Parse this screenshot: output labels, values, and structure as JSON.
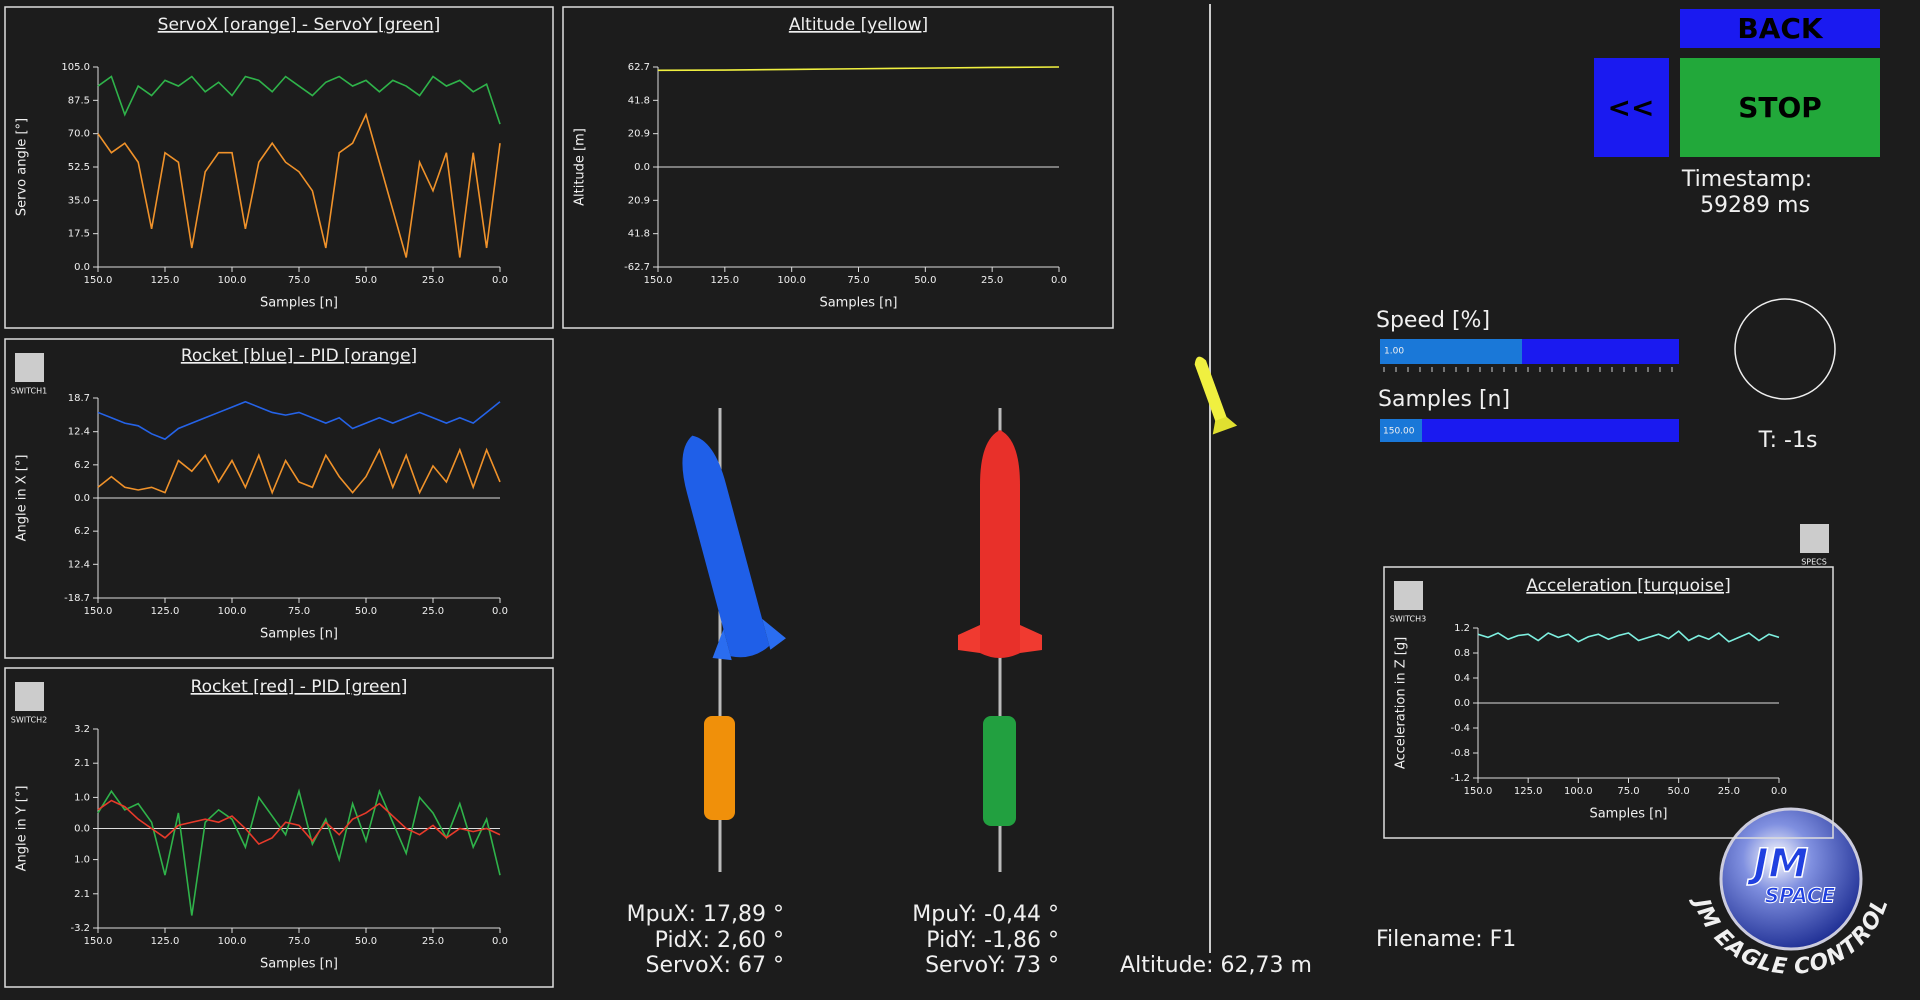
{
  "chart_data": [
    {
      "type": "line",
      "title": "ServoX [orange] - ServoY [green]",
      "xlabel": "Samples [n]",
      "ylabel": "Servo angle [°]",
      "x": [
        150,
        145,
        140,
        135,
        130,
        125,
        120,
        115,
        110,
        105,
        100,
        95,
        90,
        85,
        80,
        75,
        70,
        65,
        60,
        55,
        50,
        45,
        40,
        35,
        30,
        25,
        20,
        15,
        10,
        5,
        0
      ],
      "series": [
        {
          "name": "ServoX",
          "color": "#f0922a",
          "values": [
            70,
            60,
            65,
            55,
            20,
            60,
            55,
            10,
            50,
            60,
            60,
            20,
            55,
            65,
            55,
            50,
            40,
            10,
            60,
            65,
            80,
            55,
            30,
            5,
            55,
            40,
            60,
            5,
            60,
            10,
            65
          ]
        },
        {
          "name": "ServoY",
          "color": "#2fb34a",
          "values": [
            95,
            100,
            80,
            95,
            90,
            98,
            95,
            100,
            92,
            97,
            90,
            100,
            98,
            92,
            100,
            95,
            90,
            97,
            100,
            95,
            98,
            92,
            98,
            95,
            90,
            100,
            95,
            98,
            92,
            96,
            75
          ]
        }
      ],
      "xlim": [
        150,
        0
      ],
      "ylim": [
        0,
        105
      ],
      "xticks": [
        {
          "value": 150,
          "label": "150.0"
        },
        {
          "value": 125,
          "label": "125.0"
        },
        {
          "value": 100,
          "label": "100.0"
        },
        {
          "value": 75,
          "label": "75.0"
        },
        {
          "value": 50,
          "label": "50.0"
        },
        {
          "value": 25,
          "label": "25.0"
        },
        {
          "value": 0,
          "label": "0.0"
        }
      ],
      "yticks": [
        {
          "value": 0,
          "label": "0.0"
        },
        {
          "value": 17.5,
          "label": "17.5"
        },
        {
          "value": 35,
          "label": "35.0"
        },
        {
          "value": 52.5,
          "label": "52.5"
        },
        {
          "value": 70,
          "label": "70.0"
        },
        {
          "value": 87.5,
          "label": "87.5"
        },
        {
          "value": 105,
          "label": "105.0"
        }
      ]
    },
    {
      "type": "line",
      "title": "Rocket [blue] - PID [orange]",
      "xlabel": "Samples [n]",
      "ylabel": "Angle in X [°]",
      "switch": "SWITCH1",
      "x": [
        150,
        145,
        140,
        135,
        130,
        125,
        120,
        115,
        110,
        105,
        100,
        95,
        90,
        85,
        80,
        75,
        70,
        65,
        60,
        55,
        50,
        45,
        40,
        35,
        30,
        25,
        20,
        15,
        10,
        5,
        0
      ],
      "series": [
        {
          "name": "Rocket",
          "color": "#2563e8",
          "values": [
            16,
            15,
            14,
            13.5,
            12,
            11,
            13,
            14,
            15,
            16,
            17,
            18,
            17,
            16,
            15.5,
            16,
            15,
            14,
            15,
            13,
            14,
            15,
            14,
            15,
            16,
            15,
            14,
            15,
            14,
            16,
            18
          ]
        },
        {
          "name": "PID",
          "color": "#f0922a",
          "values": [
            2,
            4,
            2,
            1.5,
            2,
            1,
            7,
            5,
            8,
            3,
            7,
            2,
            8,
            1,
            7,
            3,
            2,
            8,
            4,
            1,
            4,
            9,
            2,
            8,
            1,
            6,
            3,
            9,
            2,
            9,
            3
          ]
        }
      ],
      "xlim": [
        150,
        0
      ],
      "ylim": [
        -18.7,
        18.7
      ],
      "xticks": [
        {
          "value": 150,
          "label": "150.0"
        },
        {
          "value": 125,
          "label": "125.0"
        },
        {
          "value": 100,
          "label": "100.0"
        },
        {
          "value": 75,
          "label": "75.0"
        },
        {
          "value": 50,
          "label": "50.0"
        },
        {
          "value": 25,
          "label": "25.0"
        },
        {
          "value": 0,
          "label": "0.0"
        }
      ],
      "yticks": [
        -18.7,
        {
          "value": -12.4,
          "label": "12.4"
        },
        {
          "value": -6.2,
          "label": "6.2"
        },
        {
          "value": 0,
          "label": "0.0"
        },
        6.2,
        12.4,
        18.7
      ]
    },
    {
      "type": "line",
      "title": "Rocket [red] - PID [green]",
      "xlabel": "Samples [n]",
      "ylabel": "Angle in Y [°]",
      "switch": "SWITCH2",
      "x": [
        150,
        145,
        140,
        135,
        130,
        125,
        120,
        115,
        110,
        105,
        100,
        95,
        90,
        85,
        80,
        75,
        70,
        65,
        60,
        55,
        50,
        45,
        40,
        35,
        30,
        25,
        20,
        15,
        10,
        5,
        0
      ],
      "series": [
        {
          "name": "PID",
          "color": "#2fb34a",
          "values": [
            0.5,
            1.2,
            0.6,
            0.8,
            0.2,
            -1.5,
            0.5,
            -2.8,
            0.2,
            0.6,
            0.3,
            -0.6,
            1.0,
            0.4,
            -0.2,
            1.2,
            -0.5,
            0.3,
            -1.0,
            0.8,
            -0.4,
            1.2,
            0.2,
            -0.8,
            1.0,
            0.5,
            -0.3,
            0.8,
            -0.6,
            0.3,
            -1.5
          ]
        },
        {
          "name": "Rocket",
          "color": "#e83a2a",
          "values": [
            0.6,
            0.9,
            0.7,
            0.3,
            0.0,
            -0.3,
            0.1,
            0.2,
            0.3,
            0.2,
            0.4,
            0.0,
            -0.5,
            -0.3,
            0.2,
            0.1,
            -0.4,
            0.2,
            -0.2,
            0.3,
            0.5,
            0.8,
            0.4,
            0.0,
            -0.2,
            0.1,
            -0.3,
            0.0,
            -0.1,
            0.0,
            -0.2
          ]
        }
      ],
      "xlim": [
        150,
        0
      ],
      "ylim": [
        -3.2,
        3.2
      ],
      "xticks": [
        {
          "value": 150,
          "label": "150.0"
        },
        {
          "value": 125,
          "label": "125.0"
        },
        {
          "value": 100,
          "label": "100.0"
        },
        {
          "value": 75,
          "label": "75.0"
        },
        {
          "value": 50,
          "label": "50.0"
        },
        {
          "value": 25,
          "label": "25.0"
        },
        {
          "value": 0,
          "label": "0.0"
        }
      ],
      "yticks": [
        -3.2,
        {
          "value": -2.1,
          "label": "2.1"
        },
        {
          "value": -1.0,
          "label": "1.0"
        },
        {
          "value": 0,
          "label": "0.0"
        },
        {
          "value": 1.0,
          "label": "1.0"
        },
        2.1,
        3.2
      ]
    },
    {
      "type": "line",
      "title": "Altitude [yellow]",
      "xlabel": "Samples [n]",
      "ylabel": "Altitude [m]",
      "x": [
        150,
        125,
        100,
        75,
        50,
        25,
        0
      ],
      "series": [
        {
          "name": "Altitude",
          "color": "#f0f040",
          "values": [
            60.6,
            60.8,
            61.2,
            61.6,
            62.0,
            62.4,
            62.7
          ]
        }
      ],
      "xlim": [
        150,
        0
      ],
      "ylim": [
        -62.7,
        62.7
      ],
      "xticks": [
        {
          "value": 150,
          "label": "150.0"
        },
        {
          "value": 125,
          "label": "125.0"
        },
        {
          "value": 100,
          "label": "100.0"
        },
        {
          "value": 75,
          "label": "75.0"
        },
        {
          "value": 50,
          "label": "50.0"
        },
        {
          "value": 25,
          "label": "25.0"
        },
        {
          "value": 0,
          "label": "0.0"
        }
      ],
      "yticks": [
        -62.7,
        {
          "value": -41.8,
          "label": "41.8"
        },
        {
          "value": -20.9,
          "label": "20.9"
        },
        {
          "value": 0,
          "label": "0.0"
        },
        20.9,
        41.8,
        62.7
      ]
    },
    {
      "type": "line",
      "title": "Acceleration [turquoise]",
      "xlabel": "Samples [n]",
      "ylabel": "Acceleration in Z [g]",
      "switch": "SWITCH3",
      "x": [
        150,
        145,
        140,
        135,
        130,
        125,
        120,
        115,
        110,
        105,
        100,
        95,
        90,
        85,
        80,
        75,
        70,
        65,
        60,
        55,
        50,
        45,
        40,
        35,
        30,
        25,
        20,
        15,
        10,
        5,
        0
      ],
      "series": [
        {
          "name": "Acceleration",
          "color": "#7ef0e0",
          "values": [
            1.1,
            1.05,
            1.12,
            1.02,
            1.08,
            1.1,
            1.0,
            1.12,
            1.05,
            1.1,
            0.98,
            1.06,
            1.1,
            1.02,
            1.08,
            1.12,
            1.0,
            1.05,
            1.1,
            1.03,
            1.15,
            1.0,
            1.08,
            1.02,
            1.12,
            0.98,
            1.05,
            1.12,
            1.0,
            1.1,
            1.05
          ]
        }
      ],
      "xlim": [
        150,
        0
      ],
      "ylim": [
        -1.2,
        1.2
      ],
      "xticks": [
        {
          "value": 150,
          "label": "150.0"
        },
        {
          "value": 125,
          "label": "125.0"
        },
        {
          "value": 100,
          "label": "100.0"
        },
        {
          "value": 75,
          "label": "75.0"
        },
        {
          "value": 50,
          "label": "50.0"
        },
        {
          "value": 25,
          "label": "25.0"
        },
        {
          "value": 0,
          "label": "0.0"
        }
      ],
      "yticks": [
        -1.2,
        -0.8,
        -0.4,
        {
          "value": 0,
          "label": "0.0"
        },
        0.4,
        0.8,
        1.2
      ]
    }
  ],
  "controls": {
    "back": "BACK",
    "rewind": "<<",
    "stop": "STOP",
    "timestamp_label": "Timestamp:",
    "timestamp": "59289 ms",
    "speed_label": "Speed [%]",
    "speed_value": "1.00",
    "samples_label": "Samples [n]",
    "samples_value": "150.00",
    "timer": "T: -1s",
    "specs": "SPECS"
  },
  "readouts": {
    "mpux": "MpuX: 17,89 °",
    "pidx": "PidX: 2,60 °",
    "servox": "ServoX: 67 °",
    "mpuy": "MpuY: -0,44 °",
    "pidy": "PidY: -1,86 °",
    "servoy": "ServoY: 73 °",
    "altitude": "Altitude: 62,73 m",
    "filename": "Filename: F1"
  },
  "logo": {
    "initials": "JM",
    "word": "SPACE",
    "caption": "JM EAGLE CONTROL"
  }
}
